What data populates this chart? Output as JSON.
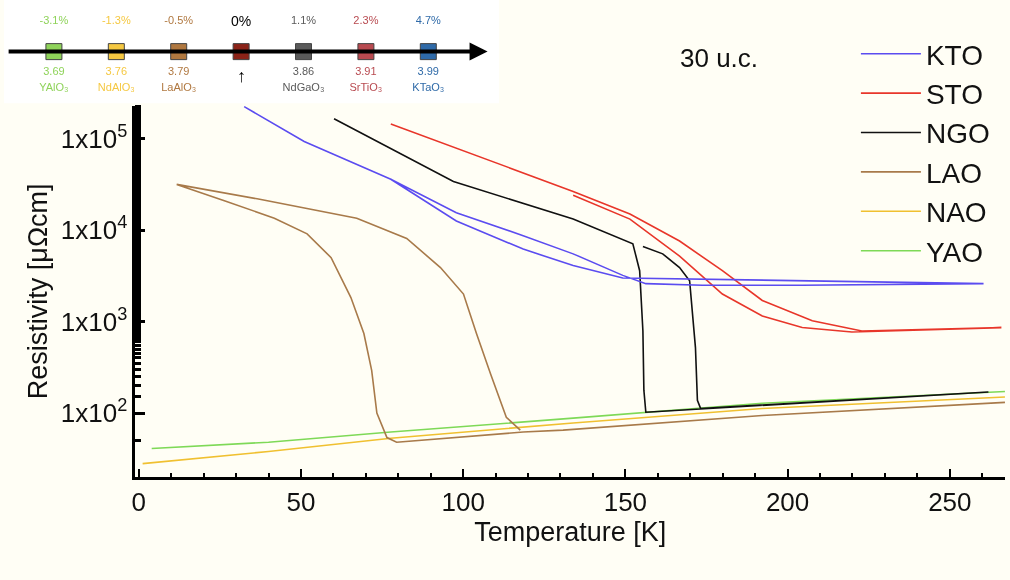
{
  "chart_data": [
    {
      "type": "line",
      "xlabel": "Temperature [K]",
      "ylabel": "Resistivity [μΩcm]",
      "xlim": [
        -1,
        267
      ],
      "xticks": [
        0,
        50,
        100,
        150,
        200,
        250
      ],
      "ylim": [
        20,
        230000
      ],
      "log": "y",
      "yticks": [
        {
          "value": 100,
          "label": "1x10$^{2}$"
        },
        {
          "value": 1000,
          "label": "1x10$^{3}$"
        },
        {
          "value": 10000,
          "label": "1x10$^{4}$"
        },
        {
          "value": 100000,
          "label": "1x10$^{5}$"
        }
      ],
      "legend": "top right",
      "marker": "none",
      "line_style": "solid",
      "annotations": [
        "30 u.c."
      ],
      "series": [
        {
          "name": "KTO",
          "color": "#5b4cf0",
          "x": [
            32.5,
            51,
            77.7,
            97.9,
            118.5,
            133.9,
            149.2,
            156.3,
            173.8,
            204.5,
            260.4,
            149.2,
            133.9,
            118.5,
            97.9,
            77.7
          ],
          "values": [
            224000,
            93000,
            36000,
            15500,
            8700,
            5500,
            3200,
            2600,
            2500,
            2500,
            2600,
            3000,
            4100,
            6200,
            12600,
            36000
          ]
        },
        {
          "name": "STO",
          "color": "#e8362a",
          "x": [
            77.7,
            133.9,
            151.4,
            166.7,
            179.9,
            192.2,
            207.6,
            222.9,
            265.9,
            219.8,
            204.5,
            192.2,
            179.9,
            166.7,
            151.4,
            133.9
          ],
          "values": [
            145000,
            26500,
            15000,
            7600,
            3600,
            1700,
            1020,
            790,
            860,
            770,
            860,
            1150,
            2000,
            5200,
            13200,
            24000
          ]
        },
        {
          "name": "NGO",
          "color": "#111111",
          "x": [
            60.2,
            97.0,
            133.9,
            152.3,
            154.4,
            155.4,
            155.7,
            156.3,
            261.9,
            173.2,
            172.2,
            171.6,
            169.8,
            166.7,
            161.5,
            155.4
          ],
          "values": [
            165000,
            34000,
            13200,
            7100,
            3600,
            790,
            178,
            102,
            170,
            112,
            138,
            520,
            2800,
            3900,
            5500,
            6600
          ]
        },
        {
          "name": "LAO",
          "color": "#a87a4a",
          "x": [
            267,
            192.2,
            130.8,
            118.5,
            79.5,
            76.5,
            73.4,
            71.8,
            69.4,
            65.4,
            59.3,
            51.9,
            41.8,
            26.4,
            11.7,
            36.5,
            67.2,
            82.6,
            93.0,
            100.1,
            104.1,
            108.4,
            113.3,
            117.6
          ],
          "values": [
            131,
            94,
            65,
            62,
            48,
            54,
            100,
            293,
            740,
            1830,
            5000,
            9100,
            13500,
            21000,
            31600,
            22000,
            13500,
            8100,
            3900,
            2000,
            740,
            270,
            90,
            65
          ]
        },
        {
          "name": "NAO",
          "color": "#f0c030",
          "x": [
            1.2,
            40,
            77.7,
            133.9,
            192.2,
            267
          ],
          "values": [
            28,
            38,
            53,
            78,
            112,
            150
          ]
        },
        {
          "name": "YAO",
          "color": "#7ed957",
          "x": [
            4,
            40,
            77.7,
            133.9,
            192.2,
            267
          ],
          "values": [
            41,
            48,
            62,
            88,
            128,
            172
          ]
        }
      ]
    },
    {
      "type": "other",
      "categories": [
        "YAlO₃",
        "NdAlO₃",
        "LaAlO₃",
        null,
        "NdGaO₃",
        "SrTiO₃",
        "KTaO₃"
      ],
      "colors": [
        "#8fd35a",
        "#f5c842",
        "#b07840",
        "#8b2318",
        "#5a5a5a",
        "#b84a50",
        "#2f6aa8"
      ],
      "annotations": [
        "0%",
        "↑"
      ],
      "series": [
        {
          "values": [
            -3.1,
            -1.3,
            -0.5,
            null,
            1.1,
            2.3,
            4.7
          ],
          "value_labels": [
            "-3.1%",
            "-1.3%",
            "-0.5%",
            null,
            "1.1%",
            "2.3%",
            "4.7%"
          ]
        },
        {
          "values": [
            3.69,
            3.76,
            3.79,
            null,
            3.86,
            3.91,
            3.99
          ],
          "value_labels": [
            "3.69",
            "3.76",
            "3.79",
            null,
            "3.86",
            "3.91",
            "3.99"
          ]
        }
      ]
    }
  ]
}
